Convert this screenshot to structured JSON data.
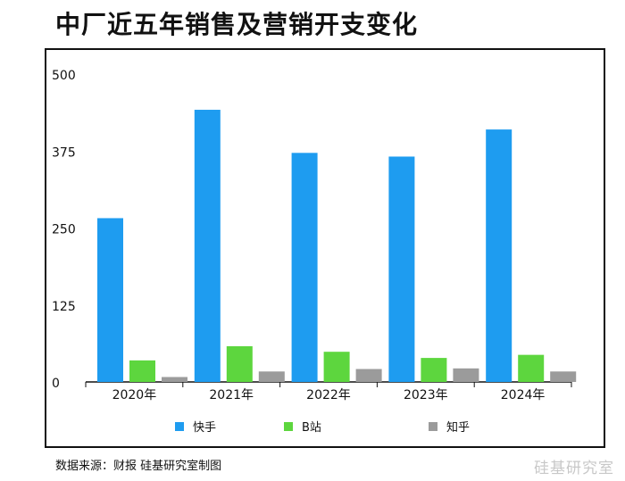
{
  "title": "中厂近五年销售及营销开支变化",
  "source": "数据来源：财报 硅基研究室制图",
  "watermark": "硅基研究室",
  "colors": {
    "kuaishou": "#1e9cf0",
    "bilibili": "#5dd63e",
    "zhihu": "#9b9b9b"
  },
  "chart_data": {
    "type": "bar",
    "categories": [
      "2020年",
      "2021年",
      "2022年",
      "2023年",
      "2024年"
    ],
    "series": [
      {
        "name": "快手",
        "values": [
          266,
          442,
          372,
          366,
          410
        ]
      },
      {
        "name": "B站",
        "values": [
          35,
          58,
          49,
          39,
          44
        ]
      },
      {
        "name": "知乎",
        "values": [
          8,
          17,
          21,
          22,
          17
        ]
      }
    ],
    "yticks": [
      "500",
      "375",
      "250",
      "125",
      "0"
    ],
    "ylim": [
      0,
      500
    ],
    "legend": "bottom",
    "grid": false
  }
}
